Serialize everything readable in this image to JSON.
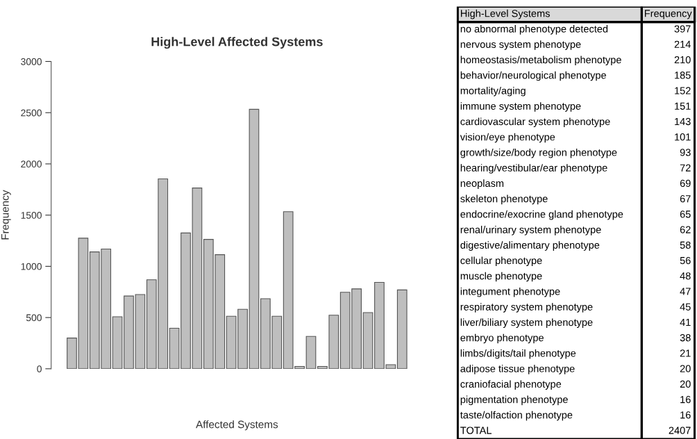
{
  "chart_data": [
    {
      "type": "bar",
      "title": "High-Level Affected Systems",
      "xlabel": "Affected Systems",
      "ylabel": "Frequency",
      "categories": [
        null,
        null,
        null,
        null,
        null,
        null,
        null,
        null,
        null,
        null,
        null,
        null,
        null,
        null,
        null,
        null,
        null,
        null,
        null,
        null,
        null,
        null,
        null,
        null,
        null,
        null,
        null,
        null,
        null,
        null
      ],
      "values": [
        300,
        1275,
        1141,
        1169,
        508,
        710,
        725,
        869,
        1854,
        396,
        1326,
        1765,
        1263,
        1114,
        513,
        581,
        2533,
        684,
        513,
        1533,
        23,
        316,
        23,
        523,
        747,
        780,
        548,
        843,
        40,
        770
      ],
      "color": "#bebebe",
      "ylim": [
        0,
        3000
      ],
      "yticks": [
        0,
        500,
        1000,
        1500,
        2000,
        2500,
        3000
      ],
      "grid": false,
      "tick_labels": "y"
    },
    {
      "type": "other",
      "annotations": [
        "High-Level Systems",
        "Frequency",
        "no abnormal phenotype detected",
        "397",
        "nervous system phenotype",
        "214",
        "homeostasis/metabolism phenotype",
        "210",
        "behavior/neurological phenotype",
        "185",
        "mortality/aging",
        "152",
        "immune system phenotype",
        "151",
        "cardiovascular system phenotype",
        "143",
        "vision/eye phenotype",
        "101",
        "growth/size/body region phenotype",
        "93",
        "hearing/vestibular/ear phenotype",
        "72",
        "neoplasm",
        "69",
        "skeleton phenotype",
        "67",
        "endocrine/exocrine gland phenotype",
        "65",
        "renal/urinary system phenotype",
        "62",
        "digestive/alimentary phenotype",
        "58",
        "cellular phenotype",
        "56",
        "muscle phenotype",
        "48",
        "integument phenotype",
        "47",
        "respiratory system phenotype",
        "45",
        "liver/biliary system phenotype",
        "41",
        "embryo phenotype",
        "38",
        "limbs/digits/tail phenotype",
        "21",
        "adipose tissue phenotype",
        "20",
        "craniofacial phenotype",
        "20",
        "pigmentation phenotype",
        "16",
        "taste/olfaction phenotype",
        "16",
        "TOTAL",
        "2407"
      ]
    }
  ]
}
